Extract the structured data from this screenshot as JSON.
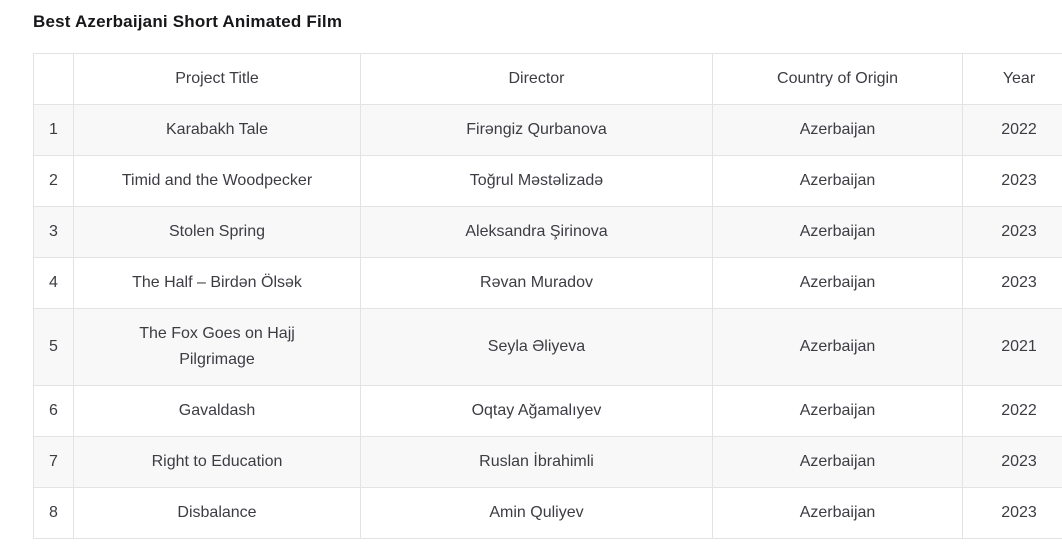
{
  "page_title": "Best Azerbaijani Short Animated Film",
  "table": {
    "columns": [
      "",
      "Project Title",
      "Director",
      "Country of Origin",
      "Year"
    ],
    "rows": [
      {
        "num": "1",
        "title": "Karabakh Tale",
        "director": "Firəngiz Qurbanova",
        "country": "Azerbaijan",
        "year": "2022"
      },
      {
        "num": "2",
        "title": "Timid and the Woodpecker",
        "director": "Toğrul Məstəlizadə",
        "country": "Azerbaijan",
        "year": "2023"
      },
      {
        "num": "3",
        "title": "Stolen Spring",
        "director": "Aleksandra Şirinova",
        "country": "Azerbaijan",
        "year": "2023"
      },
      {
        "num": "4",
        "title": "The Half – Birdən Ölsək",
        "director": "Rəvan Muradov",
        "country": "Azerbaijan",
        "year": "2023"
      },
      {
        "num": "5",
        "title": "The Fox Goes on Hajj Pilgrimage",
        "director": "Seyla Əliyeva",
        "country": "Azerbaijan",
        "year": "2021"
      },
      {
        "num": "6",
        "title": "Gavaldash",
        "director": "Oqtay Ağamalıyev",
        "country": "Azerbaijan",
        "year": "2022"
      },
      {
        "num": "7",
        "title": "Right to Education",
        "director": "Ruslan İbrahimli",
        "country": "Azerbaijan",
        "year": "2023"
      },
      {
        "num": "8",
        "title": "Disbalance",
        "director": "Amin Quliyev",
        "country": "Azerbaijan",
        "year": "2023"
      }
    ]
  },
  "colors": {
    "stripe": "#f8f8f8",
    "border": "#e3e3e5",
    "text": "#3c3c43",
    "title_text": "#17171a"
  }
}
